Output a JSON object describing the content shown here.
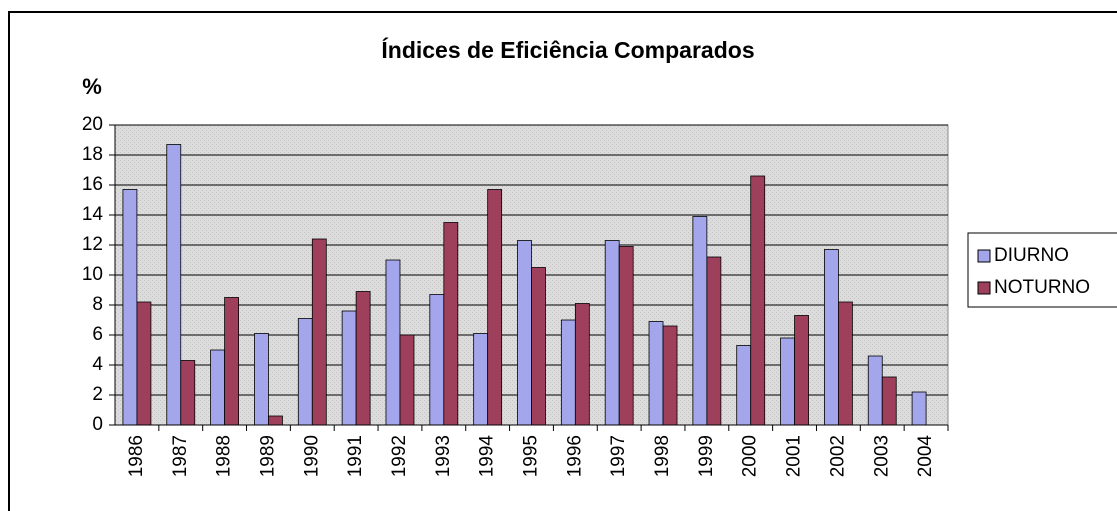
{
  "chart_data": {
    "type": "bar",
    "title": "Índices de Eficiência Comparados",
    "y_label": "%",
    "categories": [
      "1986",
      "1987",
      "1988",
      "1989",
      "1990",
      "1991",
      "1992",
      "1993",
      "1994",
      "1995",
      "1996",
      "1997",
      "1998",
      "1999",
      "2000",
      "2001",
      "2002",
      "2003",
      "2004"
    ],
    "series": [
      {
        "name": "DIURNO",
        "color": "#a3a6ea",
        "values": [
          15.7,
          18.7,
          5.0,
          6.1,
          7.1,
          7.6,
          11.0,
          8.7,
          6.1,
          12.3,
          7.0,
          12.3,
          6.9,
          13.9,
          5.3,
          5.8,
          11.7,
          4.6,
          2.2
        ]
      },
      {
        "name": "NOTURNO",
        "color": "#9e3f5c",
        "values": [
          8.2,
          4.3,
          8.5,
          0.6,
          12.4,
          8.9,
          6.0,
          13.5,
          15.7,
          10.5,
          8.1,
          11.9,
          6.6,
          11.2,
          16.6,
          7.3,
          8.2,
          3.2,
          null
        ]
      }
    ],
    "ylim": [
      0,
      20
    ],
    "yticks": [
      0,
      2,
      4,
      6,
      8,
      10,
      12,
      14,
      16,
      18,
      20
    ],
    "grid": true
  }
}
